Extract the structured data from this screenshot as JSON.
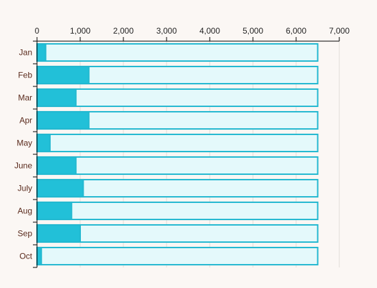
{
  "chart_data": {
    "type": "bar",
    "orientation": "horizontal",
    "categories": [
      "Jan",
      "Feb",
      "Mar",
      "Apr",
      "May",
      "June",
      "July",
      "Aug",
      "Sep",
      "Oct"
    ],
    "series": [
      {
        "values": [
          200,
          1200,
          900,
          1200,
          300,
          900,
          1070,
          800,
          1000,
          100
        ]
      },
      {
        "values": [
          6500,
          6500,
          6500,
          6500,
          6500,
          6500,
          6500,
          6500,
          6500,
          6500
        ]
      }
    ],
    "x_ticks": [
      "0",
      "1,000",
      "2,000",
      "3,000",
      "4,000",
      "5,000",
      "6,000",
      "7,000"
    ],
    "xlim": [
      0,
      7000
    ],
    "x_axis_position": "top",
    "grid": true,
    "colors": {
      "value": "#22c0d8",
      "background": "#e4f9fb",
      "stroke": "#22b8d0",
      "page": "#fbf7f4"
    }
  }
}
